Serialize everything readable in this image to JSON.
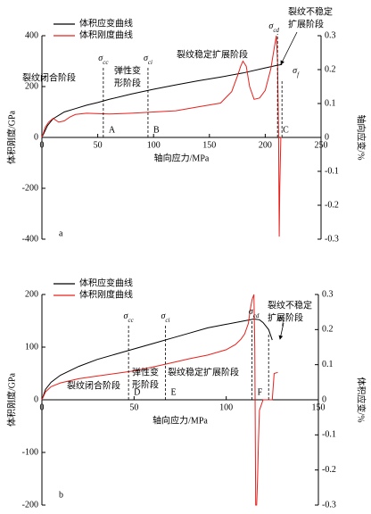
{
  "chart_data": [
    {
      "type": "line",
      "panel_label": "a",
      "xlabel": "轴向应力/MPa",
      "ylabel": "体积刚度/GPa",
      "y2label": "轴向应变/%",
      "xlim": [
        0,
        250
      ],
      "xticks": [
        0,
        50,
        100,
        150,
        200,
        250
      ],
      "ylim": [
        -400,
        400
      ],
      "yticks": [
        -400,
        -200,
        0,
        200,
        400
      ],
      "y2lim": [
        -0.3,
        0.3
      ],
      "y2ticks": [
        -0.3,
        -0.2,
        -0.1,
        0,
        0.1,
        0.2,
        0.3
      ],
      "series": [
        {
          "name": "体积应变曲线",
          "color": "#000000",
          "axis": "y2",
          "x": [
            0,
            5,
            10,
            20,
            30,
            40,
            50,
            60,
            80,
            100,
            120,
            140,
            160,
            180,
            200,
            210,
            215
          ],
          "values": [
            0,
            0.035,
            0.055,
            0.075,
            0.085,
            0.095,
            0.103,
            0.112,
            0.128,
            0.142,
            0.155,
            0.167,
            0.178,
            0.19,
            0.205,
            0.212,
            0.215
          ]
        },
        {
          "name": "体积刚度曲线",
          "color": "#e8201c",
          "axis": "y",
          "x": [
            0,
            3,
            6,
            10,
            15,
            20,
            25,
            30,
            40,
            60,
            80,
            100,
            120,
            140,
            160,
            170,
            175,
            178,
            180,
            183,
            186,
            190,
            195,
            200,
            205,
            208,
            210,
            211,
            212,
            212.5,
            213,
            214,
            215
          ],
          "values": [
            0,
            40,
            60,
            75,
            60,
            65,
            80,
            90,
            95,
            92,
            95,
            100,
            105,
            120,
            135,
            180,
            240,
            280,
            300,
            280,
            200,
            150,
            155,
            185,
            270,
            350,
            400,
            300,
            0,
            -390,
            -200,
            0,
            0
          ]
        }
      ],
      "markers": [
        {
          "symbol": "σ",
          "subscript": "cc",
          "x": 55,
          "point": "A"
        },
        {
          "symbol": "σ",
          "subscript": "ci",
          "x": 95,
          "point": "B"
        },
        {
          "symbol": "σ",
          "subscript": "cd",
          "x": 211,
          "point": "C"
        },
        {
          "symbol": "σ",
          "subscript": "f",
          "x": 215
        }
      ],
      "stages": [
        [
          "裂纹闭合阶段"
        ],
        [
          "弹性变",
          "形阶段"
        ],
        [
          "裂纹稳定扩展阶段"
        ],
        [
          "裂纹不稳定",
          "扩展阶段"
        ]
      ]
    },
    {
      "type": "line",
      "panel_label": "b",
      "xlabel": "轴向应力/MPa",
      "ylabel": "体积刚度/GPa",
      "y2label": "体积应变/%",
      "xlim": [
        0,
        150
      ],
      "xticks": [
        0,
        50,
        100,
        150
      ],
      "ylim": [
        -200,
        200
      ],
      "yticks": [
        -200,
        -100,
        0,
        100,
        200
      ],
      "y2lim": [
        -0.3,
        0.3
      ],
      "y2ticks": [
        -0.3,
        -0.2,
        -0.1,
        0,
        0.1,
        0.2,
        0.3
      ],
      "series": [
        {
          "name": "体积应变曲线",
          "color": "#000000",
          "axis": "y2",
          "x": [
            0,
            2,
            5,
            10,
            20,
            30,
            40,
            50,
            60,
            70,
            80,
            90,
            100,
            110,
            115,
            118,
            120,
            123,
            125
          ],
          "values": [
            0,
            0.03,
            0.05,
            0.07,
            0.095,
            0.115,
            0.13,
            0.145,
            0.16,
            0.175,
            0.19,
            0.205,
            0.215,
            0.225,
            0.23,
            0.228,
            0.22,
            0.2,
            0.17
          ]
        },
        {
          "name": "体积刚度曲线",
          "color": "#e8201c",
          "axis": "y",
          "x": [
            0,
            2,
            5,
            10,
            20,
            30,
            40,
            50,
            60,
            70,
            80,
            90,
            100,
            105,
            108,
            110,
            112,
            113,
            114,
            115,
            115.5,
            116,
            116.5,
            117,
            117.5,
            118,
            120,
            122,
            125,
            126,
            128
          ],
          "values": [
            0,
            15,
            25,
            32,
            40,
            45,
            50,
            55,
            62,
            70,
            78,
            85,
            95,
            105,
            115,
            125,
            145,
            170,
            190,
            200,
            100,
            -200,
            -200,
            -150,
            -80,
            -20,
            0,
            0,
            0,
            50,
            52
          ]
        }
      ],
      "markers": [
        {
          "symbol": "σ",
          "subscript": "cc",
          "x": 47,
          "point": "D"
        },
        {
          "symbol": "σ",
          "subscript": "ci",
          "x": 67,
          "point": "E"
        },
        {
          "symbol": "σ",
          "subscript": "cd",
          "x": 114,
          "point": "F"
        },
        {
          "symbol": "σ",
          "subscript": "f",
          "x": 123
        }
      ],
      "stages": [
        [
          "裂纹闭合阶段"
        ],
        [
          "弹性变",
          "形阶段"
        ],
        [
          "裂纹稳定扩展阶段"
        ],
        [
          "裂纹不稳定",
          "扩展阶段"
        ]
      ]
    }
  ]
}
